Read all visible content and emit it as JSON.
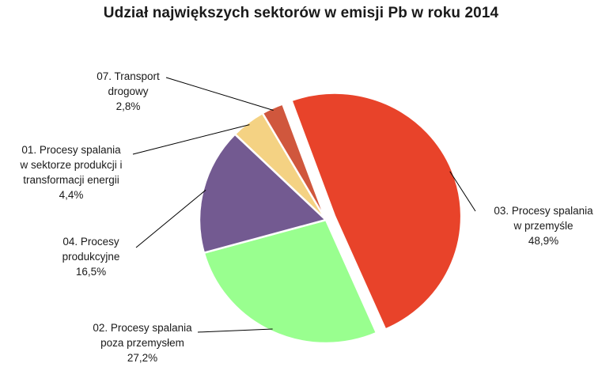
{
  "chart_data": {
    "type": "pie",
    "title": "Udział największych sektorów w emisji Pb w roku 2014",
    "legend": "none",
    "slices": [
      {
        "key": "s03",
        "label_lines": [
          "03. Procesy spalania",
          "w przemyśle"
        ],
        "value": 48.9,
        "value_label": "48,9%",
        "color": "#e8432a",
        "exploded": true
      },
      {
        "key": "s02",
        "label_lines": [
          "02. Procesy spalania",
          "poza przemysłem"
        ],
        "value": 27.2,
        "value_label": "27,2%",
        "color": "#99ff8f",
        "exploded": false
      },
      {
        "key": "s04",
        "label_lines": [
          "04. Procesy",
          "produkcyjne"
        ],
        "value": 16.5,
        "value_label": "16,5%",
        "color": "#735a91",
        "exploded": false
      },
      {
        "key": "s01",
        "label_lines": [
          "01. Procesy spalania",
          "w sektorze produkcji i",
          "transformacji energii"
        ],
        "value": 4.4,
        "value_label": "4,4%",
        "color": "#f4d283",
        "exploded": false
      },
      {
        "key": "s07",
        "label_lines": [
          "07. Transport",
          "drogowy"
        ],
        "value": 2.8,
        "value_label": "2,8%",
        "color": "#d0573d",
        "exploded": false
      }
    ]
  }
}
